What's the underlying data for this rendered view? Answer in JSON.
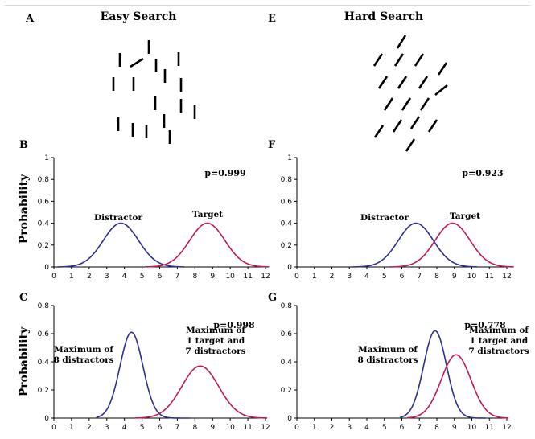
{
  "figure": {
    "top_left": {
      "letter": "A",
      "title": "Easy Search"
    },
    "top_right": {
      "letter": "E",
      "title": "Hard Search"
    },
    "colors": {
      "distractor": "#2e2f8e",
      "target": "#c2185b",
      "axis": "#000000",
      "tick_text": "#000000"
    }
  },
  "chart_data": [
    {
      "id": "B",
      "type": "line",
      "letter": "B",
      "ylabel": "Probability",
      "p_label": "p=0.999",
      "xlim": [
        0,
        12
      ],
      "ylim": [
        0,
        1
      ],
      "xticks": [
        0,
        1,
        2,
        3,
        4,
        5,
        6,
        7,
        8,
        9,
        10,
        11,
        12
      ],
      "yticks": [
        0,
        0.2,
        0.4,
        0.6,
        0.8,
        1
      ],
      "ytick_labels": [
        "0",
        "0.2",
        "0.4",
        "0.6",
        "0.8",
        "1"
      ],
      "series": [
        {
          "name": "Distractor",
          "color": "#2e2f8e",
          "mean": 3.8,
          "sd": 1.0,
          "peak": 0.4,
          "x_range": [
            0.2,
            7.4
          ]
        },
        {
          "name": "Target",
          "color": "#c2185b",
          "mean": 8.7,
          "sd": 1.0,
          "peak": 0.4,
          "x_range": [
            5.2,
            12.2
          ]
        }
      ]
    },
    {
      "id": "F",
      "type": "line",
      "letter": "F",
      "ylabel": "",
      "p_label": "p=0.923",
      "xlim": [
        0,
        12
      ],
      "ylim": [
        0,
        1
      ],
      "xticks": [
        0,
        1,
        2,
        3,
        4,
        5,
        6,
        7,
        8,
        9,
        10,
        11,
        12
      ],
      "yticks": [
        0,
        0.2,
        0.4,
        0.6,
        0.8,
        1
      ],
      "ytick_labels": [
        "0",
        "0.2",
        "0.4",
        "0.6",
        "0.8",
        "1"
      ],
      "series": [
        {
          "name": "Distractor",
          "color": "#2e2f8e",
          "mean": 6.8,
          "sd": 1.0,
          "peak": 0.4,
          "x_range": [
            3.2,
            10.3
          ]
        },
        {
          "name": "Target",
          "color": "#c2185b",
          "mean": 8.9,
          "sd": 1.0,
          "peak": 0.4,
          "x_range": [
            5.3,
            12.4
          ]
        }
      ]
    },
    {
      "id": "C",
      "type": "line",
      "letter": "C",
      "ylabel": "Probability",
      "p_label": "p=0.998",
      "xlim": [
        0,
        12
      ],
      "ylim": [
        0,
        0.8
      ],
      "xticks": [
        0,
        1,
        2,
        3,
        4,
        5,
        6,
        7,
        8,
        9,
        10,
        11,
        12
      ],
      "yticks": [
        0,
        0.2,
        0.4,
        0.6,
        0.8
      ],
      "ytick_labels": [
        "0",
        "0.2",
        "0.4",
        "0.6",
        "0.8"
      ],
      "series": [
        {
          "name": "Maximum of\n8 distractors",
          "color": "#2e2f8e",
          "mean": 4.4,
          "sd": 0.65,
          "peak": 0.61,
          "x_range": [
            2.4,
            7.7
          ]
        },
        {
          "name": "Maximum of\n1 target and\n7 distractors",
          "color": "#c2185b",
          "mean": 8.3,
          "sd": 1.05,
          "peak": 0.37,
          "x_range": [
            4.6,
            12.1
          ]
        }
      ]
    },
    {
      "id": "G",
      "type": "line",
      "letter": "G",
      "ylabel": "",
      "p_label": "p=0.778",
      "xlim": [
        0,
        12
      ],
      "ylim": [
        0,
        0.8
      ],
      "xticks": [
        0,
        1,
        2,
        3,
        4,
        5,
        6,
        7,
        8,
        9,
        10,
        11,
        12
      ],
      "yticks": [
        0,
        0.2,
        0.4,
        0.6,
        0.8
      ],
      "ytick_labels": [
        "0",
        "0.2",
        "0.4",
        "0.6",
        "0.8"
      ],
      "series": [
        {
          "name": "Maximum of\n8 distractors",
          "color": "#2e2f8e",
          "mean": 7.9,
          "sd": 0.65,
          "peak": 0.62,
          "x_range": [
            5.9,
            10.8
          ]
        },
        {
          "name": "Maximum of\n1 target and\n7 distractors",
          "color": "#c2185b",
          "mean": 9.1,
          "sd": 0.85,
          "peak": 0.45,
          "x_range": [
            6.3,
            12.1
          ]
        }
      ]
    }
  ]
}
